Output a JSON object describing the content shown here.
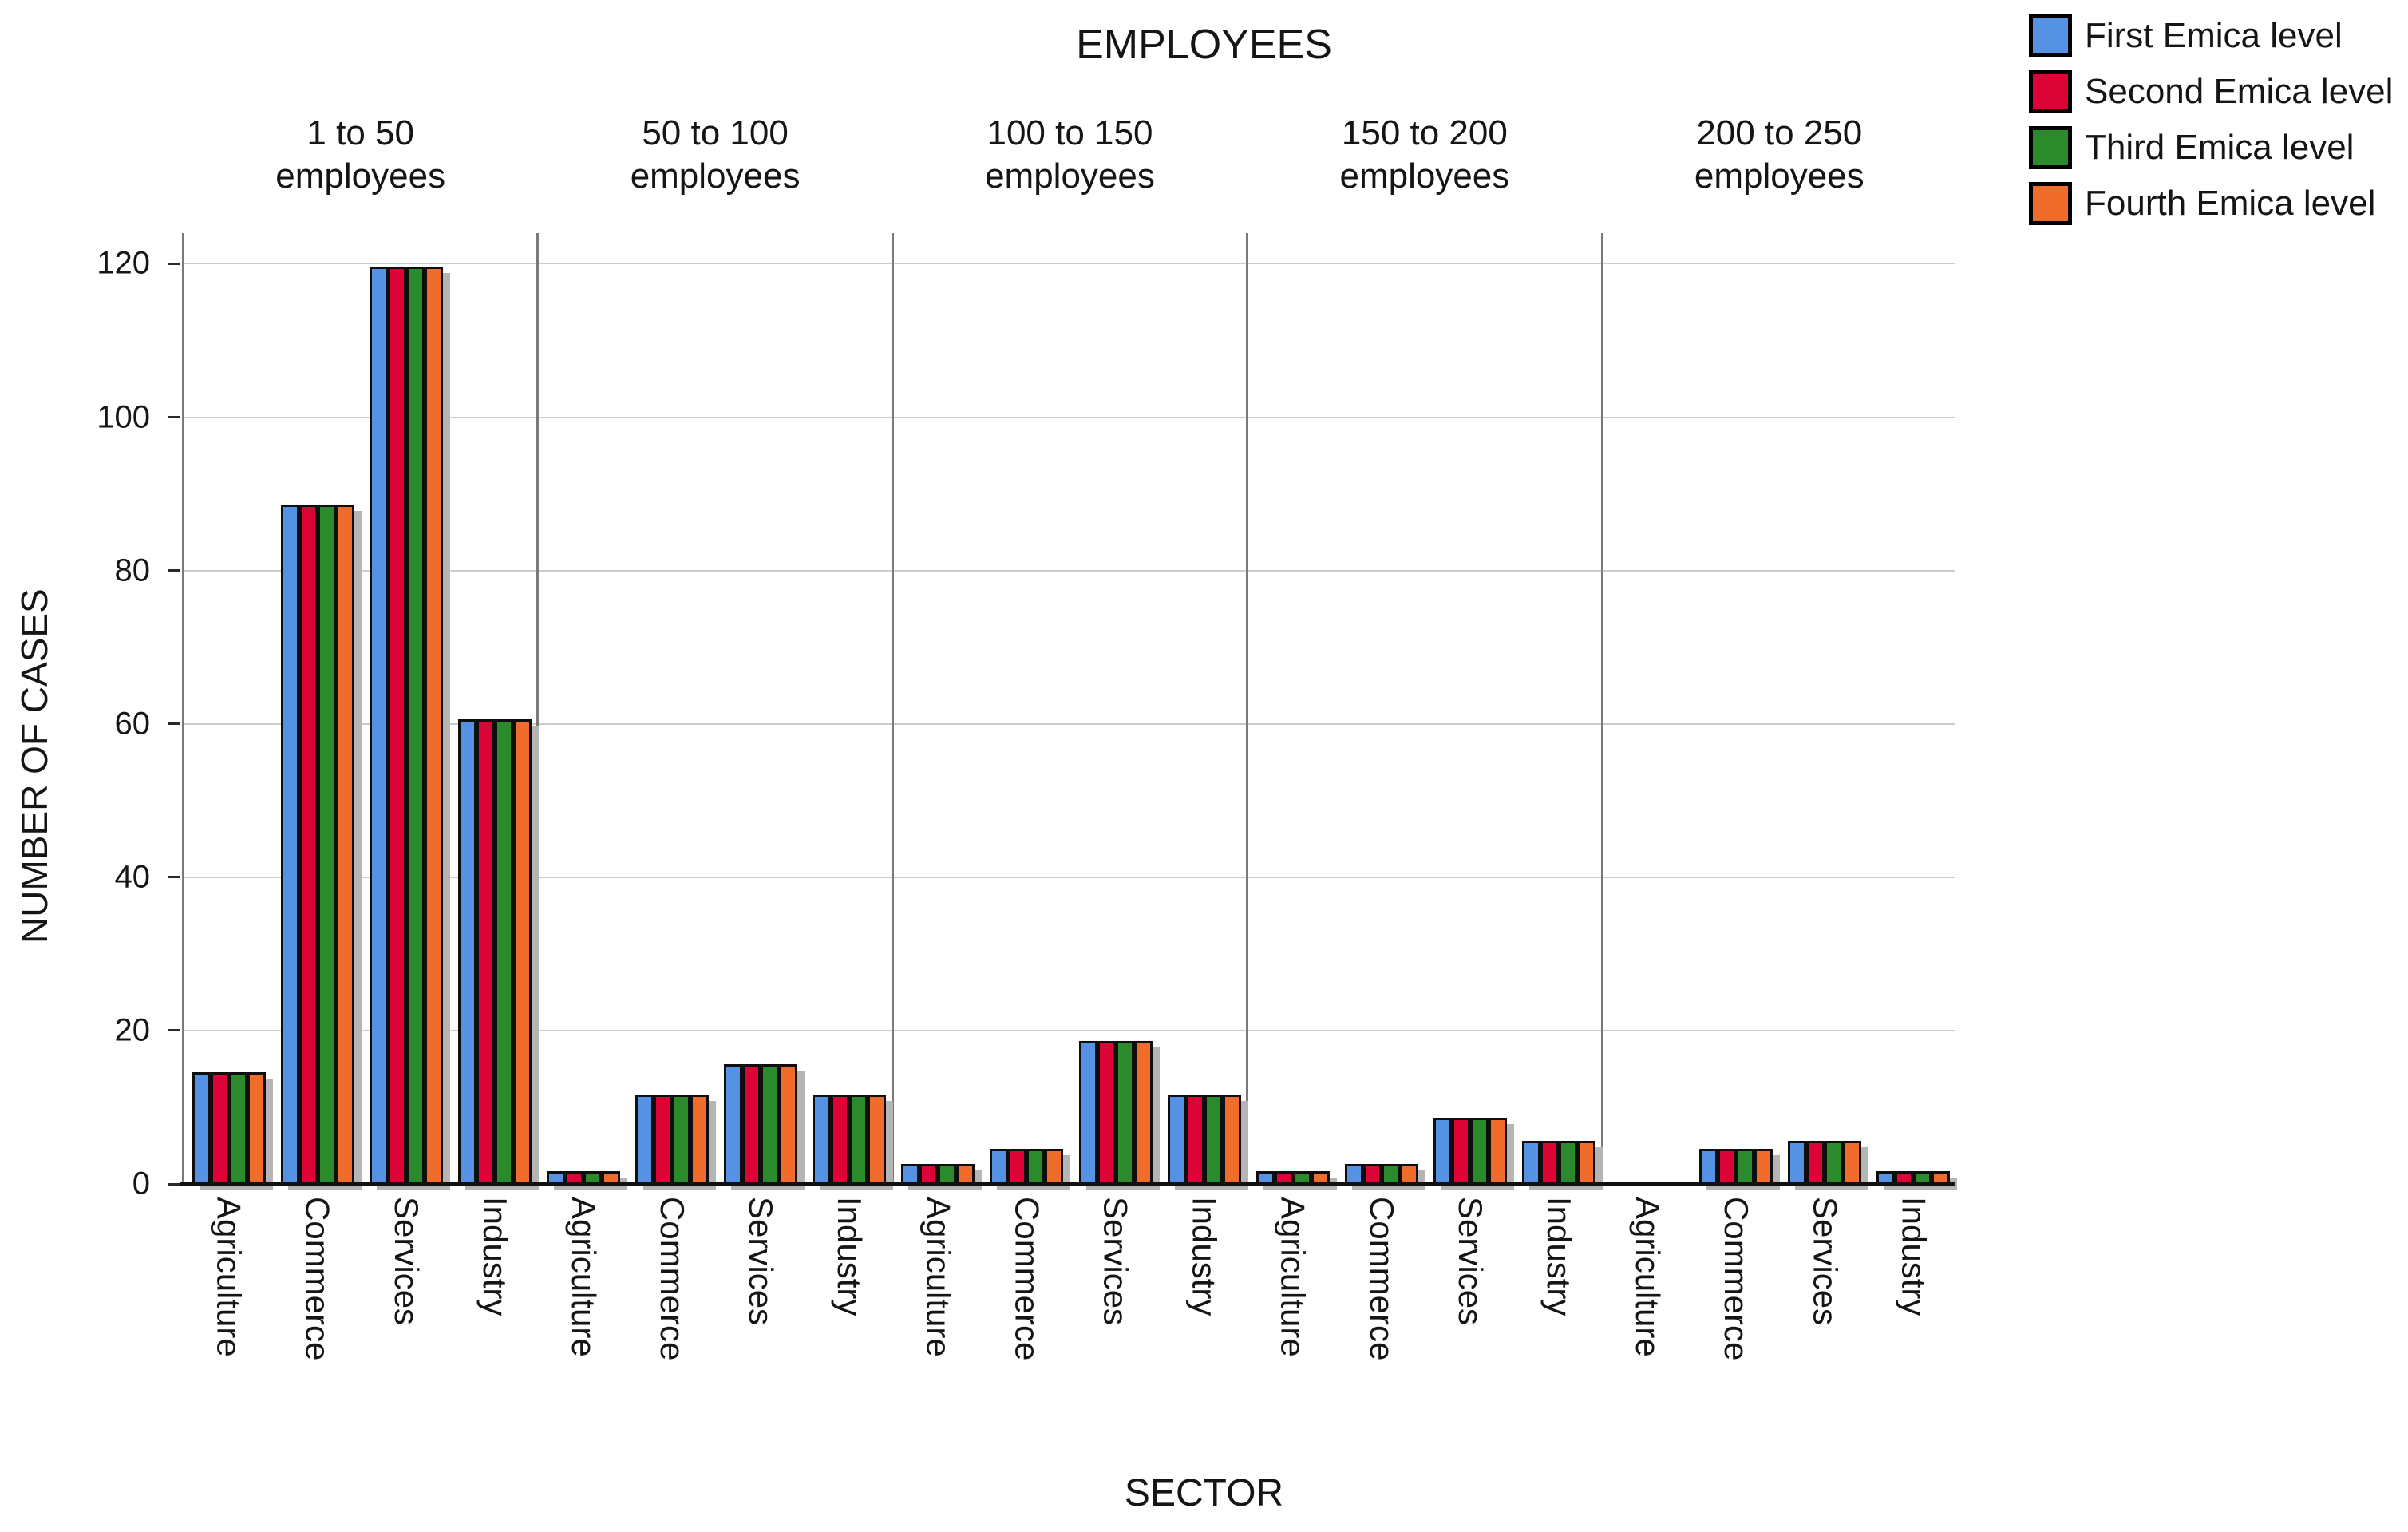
{
  "chart_data": {
    "type": "bar",
    "title": "EMPLOYEES",
    "xlabel": "SECTOR",
    "ylabel": "NUMBER OF CASES",
    "ylim": [
      0,
      124
    ],
    "yticks": [
      0,
      20,
      40,
      60,
      80,
      100,
      120
    ],
    "grid": true,
    "legend_position": "top-right",
    "categories": [
      "Agriculture",
      "Commerce",
      "Services",
      "Industry"
    ],
    "legend": [
      {
        "label": "First Emica level",
        "color": "#5592e3"
      },
      {
        "label": "Second Emica level",
        "color": "#dc0436"
      },
      {
        "label": "Third Emica level",
        "color": "#2b8a2b"
      },
      {
        "label": "Fourth Emica level",
        "color": "#f06c2b"
      }
    ],
    "bar_outline_color": "#0e0e0e",
    "shadow_color": "#b5b5b5",
    "panels": [
      {
        "label": "1 to 50 employees",
        "label_lines": [
          "1 to 50",
          "employees"
        ],
        "series": [
          {
            "name": "First Emica level",
            "values": [
              14,
              88,
              119,
              60
            ]
          },
          {
            "name": "Second Emica level",
            "values": [
              14,
              88,
              119,
              60
            ]
          },
          {
            "name": "Third Emica level",
            "values": [
              14,
              88,
              119,
              60
            ]
          },
          {
            "name": "Fourth Emica level",
            "values": [
              14,
              88,
              119,
              60
            ]
          }
        ]
      },
      {
        "label": "50 to 100 employees",
        "label_lines": [
          "50 to 100",
          "employees"
        ],
        "series": [
          {
            "name": "First Emica level",
            "values": [
              1,
              11,
              15,
              11
            ]
          },
          {
            "name": "Second Emica level",
            "values": [
              1,
              11,
              15,
              11
            ]
          },
          {
            "name": "Third Emica level",
            "values": [
              1,
              11,
              15,
              11
            ]
          },
          {
            "name": "Fourth Emica level",
            "values": [
              1,
              11,
              15,
              11
            ]
          }
        ]
      },
      {
        "label": "100 to 150 employees",
        "label_lines": [
          "100 to 150",
          "employees"
        ],
        "series": [
          {
            "name": "First Emica level",
            "values": [
              2,
              4,
              18,
              11
            ]
          },
          {
            "name": "Second Emica level",
            "values": [
              2,
              4,
              18,
              11
            ]
          },
          {
            "name": "Third Emica level",
            "values": [
              2,
              4,
              18,
              11
            ]
          },
          {
            "name": "Fourth Emica level",
            "values": [
              2,
              4,
              18,
              11
            ]
          }
        ]
      },
      {
        "label": "150 to 200 employees",
        "label_lines": [
          "150 to 200",
          "employees"
        ],
        "series": [
          {
            "name": "First Emica level",
            "values": [
              1,
              2,
              8,
              5
            ]
          },
          {
            "name": "Second Emica level",
            "values": [
              1,
              2,
              8,
              5
            ]
          },
          {
            "name": "Third Emica level",
            "values": [
              1,
              2,
              8,
              5
            ]
          },
          {
            "name": "Fourth Emica level",
            "values": [
              1,
              2,
              8,
              5
            ]
          }
        ]
      },
      {
        "label": "200 to 250 employees",
        "label_lines": [
          "200 to 250",
          "employees"
        ],
        "series": [
          {
            "name": "First Emica level",
            "values": [
              0,
              4,
              5,
              1
            ]
          },
          {
            "name": "Second Emica level",
            "values": [
              0,
              4,
              5,
              1
            ]
          },
          {
            "name": "Third Emica level",
            "values": [
              0,
              4,
              5,
              1
            ]
          },
          {
            "name": "Fourth Emica level",
            "values": [
              0,
              4,
              5,
              1
            ]
          }
        ]
      }
    ]
  }
}
